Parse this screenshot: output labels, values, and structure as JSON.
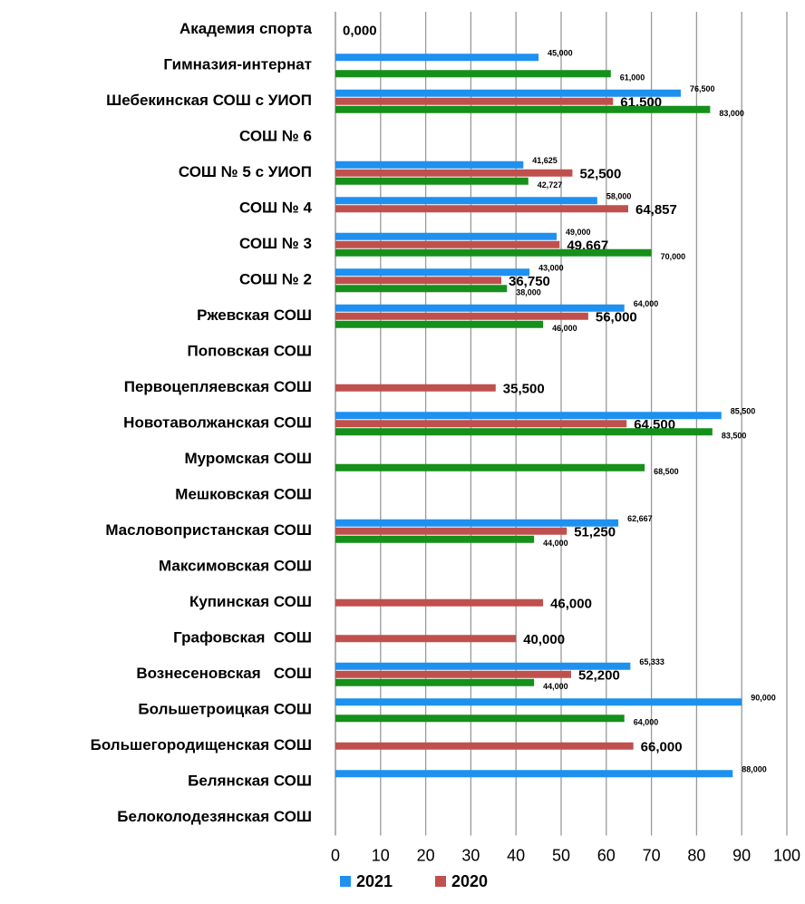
{
  "chart_data": {
    "type": "bar",
    "orientation": "horizontal",
    "categories": [
      "Академия спорта",
      "Гимназия-интернат",
      "Шебекинская СОШ с УИОП",
      "СОШ № 6",
      "СОШ № 5 с УИОП",
      "СОШ № 4",
      "СОШ № 3",
      "СОШ № 2",
      "Ржевская СОШ",
      "Поповская СОШ",
      "Первоцепляевская СОШ",
      "Новотаволжанская СОШ",
      "Муромская СОШ",
      "Мешковская СОШ",
      "Масловопристанская СОШ",
      "Максимовская СОШ",
      "Купинская СОШ",
      "Графовская  СОШ",
      "Вознесеновская   СОШ",
      "Большетроицкая СОШ",
      "Большегородищенская СОШ",
      "Белянская СОШ",
      "Белоколодезянская СОШ"
    ],
    "series": [
      {
        "name": "2021",
        "color": "#1e90f0",
        "values": [
          null,
          45,
          76.5,
          null,
          41.625,
          58,
          49,
          43,
          64,
          null,
          null,
          85.5,
          null,
          null,
          62.667,
          null,
          null,
          null,
          65.333,
          90,
          null,
          88,
          null
        ],
        "value_labels": [
          null,
          "45,000",
          "76,500",
          null,
          "41,625",
          "58,000",
          "49,000",
          "43,000",
          "64,000",
          null,
          null,
          "85,500",
          null,
          null,
          "62,667",
          null,
          null,
          null,
          "65,333",
          "90,000",
          null,
          "88,000",
          null
        ]
      },
      {
        "name": "2020",
        "color": "#c0504d",
        "values": [
          0,
          null,
          61.5,
          null,
          52.5,
          64.857,
          49.667,
          36.75,
          56,
          null,
          35.5,
          64.5,
          null,
          null,
          51.25,
          null,
          46,
          40,
          52.2,
          null,
          66,
          null,
          null
        ],
        "value_labels": [
          "0,000",
          null,
          "61,500",
          null,
          "52,500",
          "64,857",
          "49,667",
          "36,750",
          "56,000",
          null,
          "35,500",
          "64,500",
          null,
          null,
          "51,250",
          null,
          "46,000",
          "40,000",
          "52,200",
          null,
          "66,000",
          null,
          null
        ]
      },
      {
        "color": "#15901a",
        "values": [
          null,
          61,
          83,
          null,
          42.727,
          null,
          70,
          38,
          46,
          null,
          null,
          83.5,
          68.5,
          null,
          44,
          null,
          null,
          null,
          44,
          64,
          null,
          null,
          null
        ],
        "value_labels": [
          null,
          "61,000",
          "83,000",
          null,
          "42,727",
          null,
          "70,000",
          "38,000",
          "46,000",
          null,
          null,
          "83,500",
          "68,500",
          null,
          "44,000",
          null,
          null,
          null,
          "44,000",
          "64,000",
          null,
          null,
          null
        ]
      }
    ],
    "xlim": [
      0,
      100
    ],
    "xticks": [
      0,
      10,
      20,
      30,
      40,
      50,
      60,
      70,
      80,
      90,
      100
    ],
    "grid": true
  }
}
